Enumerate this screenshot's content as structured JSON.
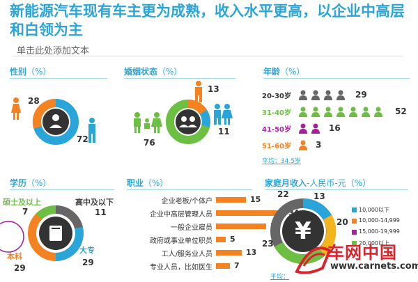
{
  "header": {
    "title": "新能源汽车现有车主更为成熟，收入水平更高，以企业中高层和白领为主",
    "subtitle": "单击此处添加文本"
  },
  "colors": {
    "blue": "#2aa5d9",
    "orange": "#f48221",
    "green": "#6dbf43",
    "purple": "#a3239b",
    "gray": "#666666",
    "yellow": "#f4b51c"
  },
  "gender": {
    "title": "性别",
    "unit": "（%）",
    "female": "28",
    "male": "72"
  },
  "marital": {
    "title": "婚姻状态",
    "unit": "（%）",
    "single": "13",
    "married": "76",
    "married_child": "11"
  },
  "age": {
    "title": "年龄",
    "unit": "（%）",
    "rows": [
      {
        "label": "20-30岁",
        "value": "29",
        "icons": 4
      },
      {
        "label": "31-40岁",
        "value": "52",
        "icons": 7
      },
      {
        "label": "41-50岁",
        "value": "16",
        "icons": 2
      },
      {
        "label": "51-60岁",
        "value": "3",
        "icons": 1
      }
    ],
    "average": "平均：34.5岁"
  },
  "education": {
    "title": "学历",
    "unit": "（%）",
    "masters_label": "硕士及以上",
    "masters_value": "7",
    "highschool_label": "高中及以下",
    "highschool_value": "11",
    "bachelor_label": "本科",
    "bachelor_value": "29",
    "college_label": "大专",
    "college_value": "29"
  },
  "occupation": {
    "title": "职业",
    "unit": "（%）",
    "rows": [
      {
        "label": "企业老板/个体户",
        "value": "15"
      },
      {
        "label": "企业中高层管理人员",
        "value": "34"
      },
      {
        "label": "一般企业雇员",
        "value": "25"
      },
      {
        "label": "政府或事业单位职员",
        "value": "5"
      },
      {
        "label": "工人/服务业人员",
        "value": "13"
      },
      {
        "label": "专业人员，比如医生",
        "value": "7"
      }
    ]
  },
  "income": {
    "title": "家庭月收入",
    "title2": "-人民币-元",
    "unit": "（%）",
    "v1": "22",
    "v2": "13",
    "v3": "20",
    "v4": "23",
    "legend": [
      "10,000以下",
      "10,000-14,999",
      "15,000-19,999",
      "20,000以上"
    ],
    "average": "平均："
  },
  "watermark": {
    "brand": "车网中国",
    "url": "www.carnets.com"
  }
}
